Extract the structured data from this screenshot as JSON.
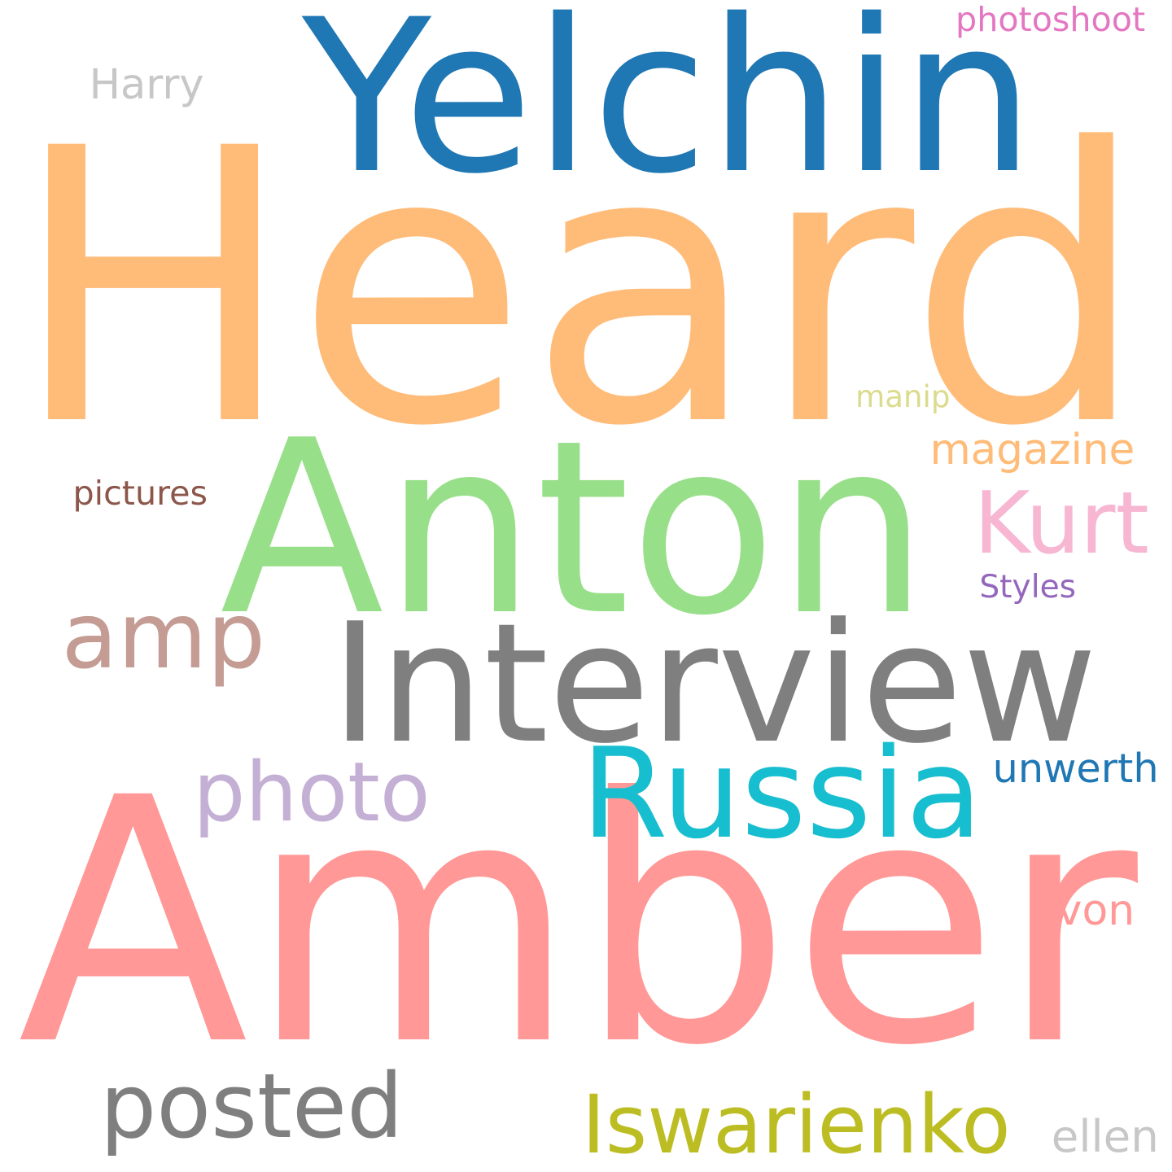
{
  "words": [
    {
      "key": "heard",
      "text": "Heard",
      "color": "#ffbb78"
    },
    {
      "key": "amber",
      "text": "Amber",
      "color": "#ff9896"
    },
    {
      "key": "yelchin",
      "text": "Yelchin",
      "color": "#1f77b4"
    },
    {
      "key": "anton",
      "text": "Anton",
      "color": "#98df8a"
    },
    {
      "key": "interview",
      "text": "Interview",
      "color": "#7f7f7f"
    },
    {
      "key": "russia",
      "text": "Russia",
      "color": "#17becf"
    },
    {
      "key": "photo",
      "text": "photo",
      "color": "#c5b0d5"
    },
    {
      "key": "amp",
      "text": "amp",
      "color": "#c49c94"
    },
    {
      "key": "posted",
      "text": "posted",
      "color": "#7f7f7f"
    },
    {
      "key": "iswarienko",
      "text": "Iswarienko",
      "color": "#bcbd22"
    },
    {
      "key": "kurt",
      "text": "Kurt",
      "color": "#f7b6d2"
    },
    {
      "key": "magazine",
      "text": "magazine",
      "color": "#ffbb78"
    },
    {
      "key": "harry",
      "text": "Harry",
      "color": "#c7c7c7"
    },
    {
      "key": "photoshoot",
      "text": "photoshoot",
      "color": "#e377c2"
    },
    {
      "key": "pictures",
      "text": "pictures",
      "color": "#8c564b"
    },
    {
      "key": "styles",
      "text": "Styles",
      "color": "#9467bd"
    },
    {
      "key": "manip",
      "text": "manip",
      "color": "#dbdb8d"
    },
    {
      "key": "unwerth",
      "text": "unwerth",
      "color": "#1f77b4"
    },
    {
      "key": "von",
      "text": "von",
      "color": "#ff9896"
    },
    {
      "key": "ellen",
      "text": "ellen",
      "color": "#c7c7c7"
    }
  ]
}
